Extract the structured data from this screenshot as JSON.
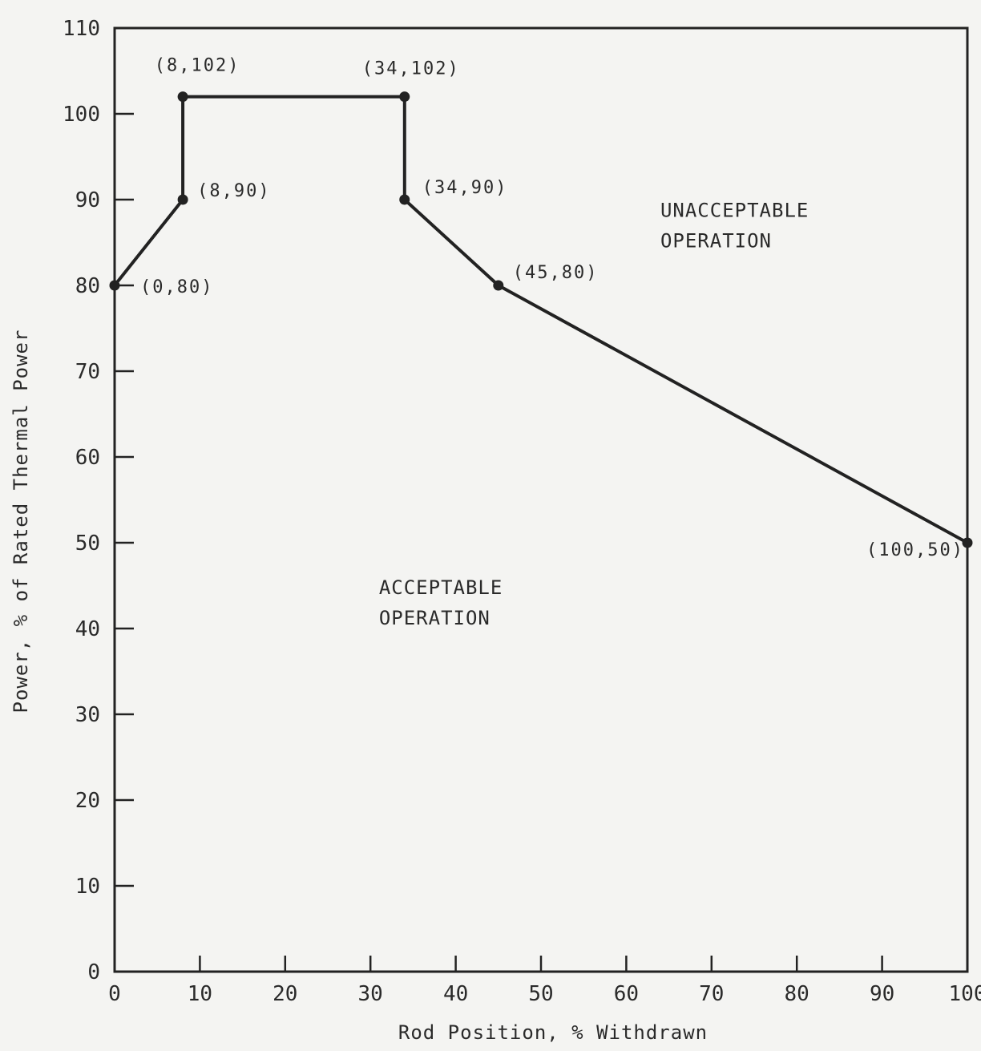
{
  "chart_data": {
    "type": "line",
    "xlabel": "Rod Position, % Withdrawn",
    "ylabel": "Power, % of Rated Thermal Power",
    "xlim": [
      0,
      100
    ],
    "ylim": [
      0,
      110
    ],
    "x_ticks": [
      "0",
      "10",
      "20",
      "30",
      "40",
      "50",
      "60",
      "70",
      "80",
      "90",
      "100"
    ],
    "y_ticks": [
      "0",
      "10",
      "20",
      "30",
      "40",
      "50",
      "60",
      "70",
      "80",
      "90",
      "100",
      "110"
    ],
    "grid": false,
    "series": [
      {
        "points": [
          {
            "x": 0,
            "y": 80,
            "label": "(0,80)"
          },
          {
            "x": 8,
            "y": 90,
            "label": "(8,90)"
          },
          {
            "x": 8,
            "y": 102,
            "label": "(8,102)"
          },
          {
            "x": 34,
            "y": 102,
            "label": "(34,102)"
          },
          {
            "x": 34,
            "y": 90,
            "label": "(34,90)"
          },
          {
            "x": 45,
            "y": 80,
            "label": "(45,80)"
          },
          {
            "x": 100,
            "y": 50,
            "label": "(100,50)"
          }
        ]
      }
    ],
    "annotations": [
      {
        "lines": [
          "UNACCEPTABLE",
          "OPERATION"
        ],
        "x": 64,
        "y": 88
      },
      {
        "lines": [
          "ACCEPTABLE",
          "OPERATION"
        ],
        "x": 31,
        "y": 44
      }
    ],
    "colors": {
      "line": "#222222",
      "background": "#f4f4f2"
    }
  }
}
